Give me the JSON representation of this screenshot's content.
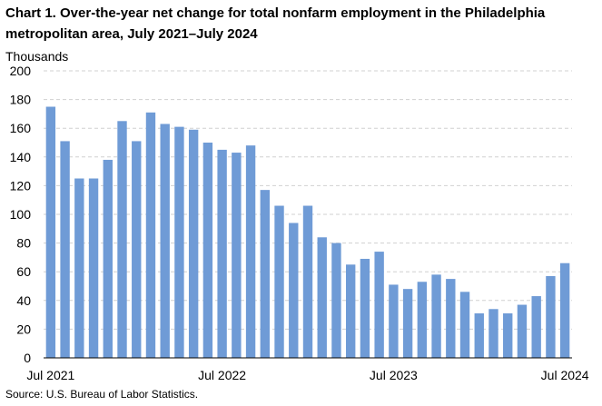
{
  "title": "Chart 1. Over-the-year net change for total nonfarm employment in the Philadelphia metropolitan area, July 2021–July 2024",
  "source": "Source: U.S. Bureau of Labor Statistics.",
  "chart_data": {
    "type": "bar",
    "title": "Chart 1. Over-the-year net change for total nonfarm employment in the Philadelphia metropolitan area, July 2021–July 2024",
    "ylabel": "Thousands",
    "xlabel": "",
    "ylim": [
      0,
      200
    ],
    "yticks": [
      0,
      20,
      40,
      60,
      80,
      100,
      120,
      140,
      160,
      180,
      200
    ],
    "grid": true,
    "bar_color": "#6f9bd6",
    "categories": [
      "Jul 2021",
      "Aug 2021",
      "Sep 2021",
      "Oct 2021",
      "Nov 2021",
      "Dec 2021",
      "Jan 2022",
      "Feb 2022",
      "Mar 2022",
      "Apr 2022",
      "May 2022",
      "Jun 2022",
      "Jul 2022",
      "Aug 2022",
      "Sep 2022",
      "Oct 2022",
      "Nov 2022",
      "Dec 2022",
      "Jan 2023",
      "Feb 2023",
      "Mar 2023",
      "Apr 2023",
      "May 2023",
      "Jun 2023",
      "Jul 2023",
      "Aug 2023",
      "Sep 2023",
      "Oct 2023",
      "Nov 2023",
      "Dec 2023",
      "Jan 2024",
      "Feb 2024",
      "Mar 2024",
      "Apr 2024",
      "May 2024",
      "Jun 2024",
      "Jul 2024"
    ],
    "xtick_labels": [
      {
        "index": 0,
        "label": "Jul 2021"
      },
      {
        "index": 12,
        "label": "Jul 2022"
      },
      {
        "index": 24,
        "label": "Jul 2023"
      },
      {
        "index": 36,
        "label": "Jul 2024"
      }
    ],
    "values": [
      175,
      151,
      125,
      125,
      138,
      165,
      151,
      171,
      163,
      161,
      159,
      150,
      145,
      143,
      148,
      117,
      106,
      94,
      106,
      84,
      80,
      65,
      69,
      74,
      51,
      48,
      53,
      58,
      55,
      46,
      31,
      34,
      31,
      37,
      43,
      57,
      66
    ]
  }
}
